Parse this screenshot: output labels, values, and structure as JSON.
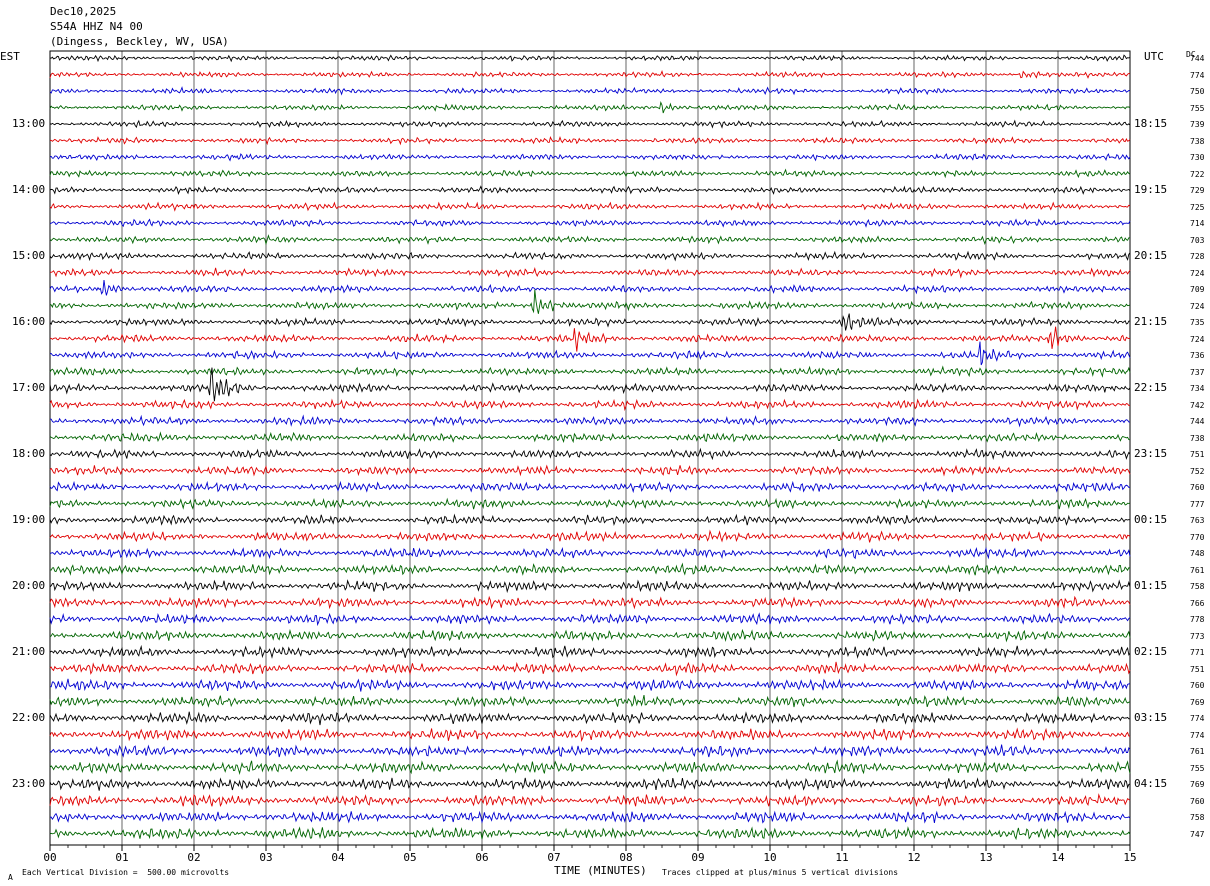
{
  "header": {
    "date": "Dec10,2025",
    "station": "S54A HHZ N4 00",
    "location": "(Dingess, Beckley, WV, USA)"
  },
  "left_tz": "EST",
  "right_tz": "UTC",
  "dc_label": "DC",
  "footer": {
    "left": "Each Vertical Division =  500.00 microvolts",
    "center": "TIME (MINUTES)",
    "right": "Traces clipped at plus/minus 5 vertical divisions",
    "corner": "A"
  },
  "colors": {
    "cycle": [
      "#000000",
      "#e00000",
      "#0000d0",
      "#006400"
    ],
    "grid": "#000000"
  },
  "chart_data": {
    "type": "line",
    "title": "",
    "xlabel": "TIME (MINUTES)",
    "ylabel": "",
    "x_range": [
      0,
      15
    ],
    "x_ticks": [
      "00",
      "01",
      "02",
      "03",
      "04",
      "05",
      "06",
      "07",
      "08",
      "09",
      "10",
      "11",
      "12",
      "13",
      "14",
      "15"
    ],
    "left_hour_labels": [
      "13:00",
      "14:00",
      "15:00",
      "16:00",
      "17:00",
      "18:00",
      "19:00",
      "20:00",
      "21:00",
      "22:00",
      "23:00"
    ],
    "right_hour_labels": [
      "18:15",
      "19:15",
      "20:15",
      "21:15",
      "22:15",
      "23:15",
      "00:15",
      "01:15",
      "02:15",
      "03:15",
      "04:15"
    ],
    "dc_offsets": [
      744,
      774,
      750,
      755,
      739,
      738,
      730,
      722,
      729,
      725,
      714,
      703,
      728,
      724,
      709,
      724,
      735,
      724,
      736,
      737,
      734,
      742,
      744,
      738,
      751,
      752,
      760,
      777,
      763,
      770,
      748,
      761,
      758,
      766,
      778,
      773,
      771,
      751,
      760,
      769,
      774,
      774,
      761,
      755,
      769,
      760,
      758,
      747
    ],
    "events": [
      {
        "trace": 3,
        "minute": 8.5,
        "amp": 1.0
      },
      {
        "trace": 14,
        "minute": 0.7,
        "amp": 1.5
      },
      {
        "trace": 15,
        "minute": 6.7,
        "amp": 3.0
      },
      {
        "trace": 16,
        "minute": 11.0,
        "amp": 1.8
      },
      {
        "trace": 17,
        "minute": 7.3,
        "amp": 1.6
      },
      {
        "trace": 17,
        "minute": 13.9,
        "amp": 2.2
      },
      {
        "trace": 18,
        "minute": 12.9,
        "amp": 1.6
      },
      {
        "trace": 20,
        "minute": 2.25,
        "amp": 3.0
      },
      {
        "trace": 1,
        "minute": 13.5,
        "amp": 0.8
      }
    ]
  }
}
